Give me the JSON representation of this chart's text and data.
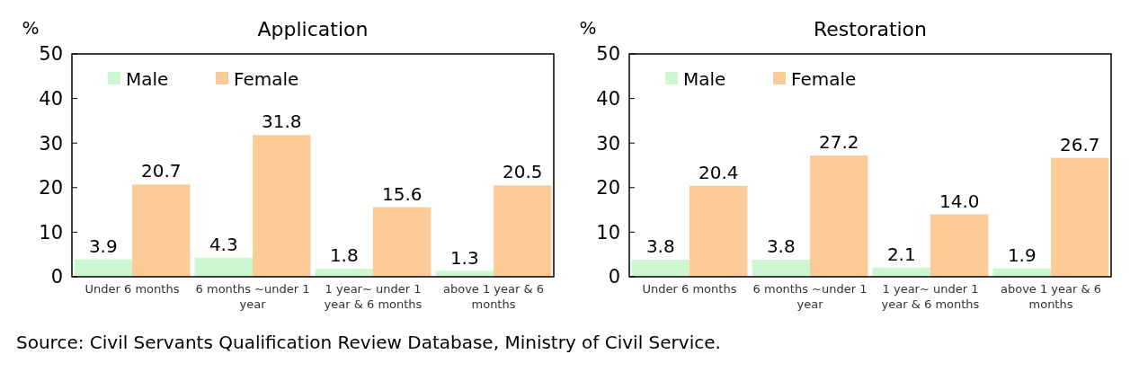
{
  "chart_data": [
    {
      "type": "bar",
      "title": "Application",
      "ylabel": "%",
      "categories": [
        "Under 6 months",
        "6 months ~under 1 year",
        "1 year~ under 1 year & 6 months",
        "above 1 year & 6 months"
      ],
      "series": [
        {
          "name": "Male",
          "color": "#ccf7d0",
          "values": [
            3.9,
            4.3,
            1.8,
            1.3
          ],
          "value_labels": [
            "3.9",
            "4.3",
            "1.8",
            "1.3"
          ]
        },
        {
          "name": "Female",
          "color": "#fccb98",
          "values": [
            20.7,
            31.8,
            15.6,
            20.5
          ],
          "value_labels": [
            "20.7",
            "31.8",
            "15.6",
            "20.5"
          ]
        }
      ],
      "ylim": [
        0,
        50
      ],
      "yticks": [
        0,
        10,
        20,
        30,
        40,
        50
      ],
      "legend": "top left",
      "annotations": [
        "Source: Civil Servants Qualification Review Database, Ministry of Civil Service."
      ]
    },
    {
      "type": "bar",
      "title": "Restoration",
      "ylabel": "%",
      "categories": [
        "Under 6 months",
        "6 months ~under 1 year",
        "1 year~ under 1 year & 6 months",
        "above 1 year & 6 months"
      ],
      "series": [
        {
          "name": "Male",
          "color": "#ccf7d0",
          "values": [
            3.8,
            3.8,
            2.1,
            1.9
          ],
          "value_labels": [
            "3.8",
            "3.8",
            "2.1",
            "1.9"
          ]
        },
        {
          "name": "Female",
          "color": "#fccb98",
          "values": [
            20.4,
            27.2,
            14,
            26.7
          ],
          "value_labels": [
            "20.4",
            "27.2",
            "14.0",
            "26.7"
          ]
        }
      ],
      "ylim": [
        0,
        50
      ],
      "yticks": [
        0,
        10,
        20,
        30,
        40,
        50
      ],
      "legend": "top left"
    }
  ]
}
